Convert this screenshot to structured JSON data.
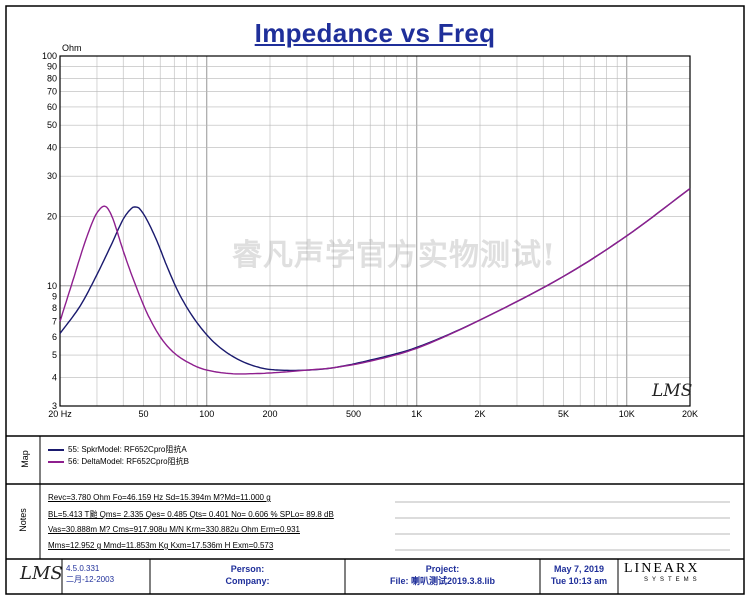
{
  "chart_data": {
    "type": "line",
    "title": "Impedance vs Freq",
    "ylabel": "Ohm",
    "xscale": "log",
    "yscale": "log",
    "xlim": [
      20,
      20000
    ],
    "ylim": [
      3,
      100
    ],
    "x_tick_labels": [
      {
        "value": 20,
        "label": "20 Hz"
      },
      {
        "value": 50,
        "label": "50"
      },
      {
        "value": 100,
        "label": "100"
      },
      {
        "value": 200,
        "label": "200"
      },
      {
        "value": 500,
        "label": "500"
      },
      {
        "value": 1000,
        "label": "1K"
      },
      {
        "value": 2000,
        "label": "2K"
      },
      {
        "value": 5000,
        "label": "5K"
      },
      {
        "value": 10000,
        "label": "10K"
      },
      {
        "value": 20000,
        "label": "20K"
      }
    ],
    "y_tick_labels": [
      {
        "value": 100,
        "label": "100"
      },
      {
        "value": 90,
        "label": "90"
      },
      {
        "value": 80,
        "label": "80"
      },
      {
        "value": 70,
        "label": "70"
      },
      {
        "value": 60,
        "label": "60"
      },
      {
        "value": 50,
        "label": "50"
      },
      {
        "value": 40,
        "label": "40"
      },
      {
        "value": 30,
        "label": "30"
      },
      {
        "value": 20,
        "label": "20"
      },
      {
        "value": 10,
        "label": "10"
      },
      {
        "value": 9,
        "label": "9"
      },
      {
        "value": 8,
        "label": "8"
      },
      {
        "value": 7,
        "label": "7"
      },
      {
        "value": 6,
        "label": "6"
      },
      {
        "value": 5,
        "label": "5"
      },
      {
        "value": 4,
        "label": "4"
      },
      {
        "value": 3,
        "label": "3"
      }
    ],
    "grid": true,
    "series": [
      {
        "name": "55: SpkrModel: RF652Cpro阻抗A",
        "color": "#1a1a6e",
        "x": [
          20,
          25,
          30,
          35,
          40,
          44,
          46.2,
          48,
          52,
          58,
          65,
          75,
          90,
          110,
          140,
          180,
          220,
          300,
          400,
          600,
          1000,
          2000,
          5000,
          10000,
          20000
        ],
        "y": [
          6.2,
          8.2,
          11.2,
          15.0,
          19.5,
          21.8,
          22.0,
          21.6,
          19.3,
          15.6,
          12.0,
          9.0,
          6.9,
          5.6,
          4.8,
          4.4,
          4.3,
          4.3,
          4.4,
          4.75,
          5.4,
          7.1,
          11.0,
          16.5,
          26.5
        ]
      },
      {
        "name": "56: DeltaModel: RF652Cpro阻抗B",
        "color": "#8e1f8e",
        "x": [
          20,
          23,
          26,
          29,
          31,
          32.6,
          34,
          36,
          40,
          45,
          52,
          60,
          70,
          85,
          100,
          130,
          170,
          220,
          300,
          400,
          600,
          1000,
          2000,
          5000,
          10000,
          20000
        ],
        "y": [
          7.0,
          10.5,
          15.0,
          19.6,
          21.6,
          22.2,
          21.5,
          19.2,
          14.2,
          10.5,
          7.6,
          6.0,
          5.1,
          4.55,
          4.3,
          4.15,
          4.15,
          4.2,
          4.3,
          4.4,
          4.7,
          5.35,
          7.1,
          11.0,
          16.5,
          26.5
        ]
      }
    ],
    "watermark": "睿凡声学官方实物测试!",
    "logo": "LMS"
  },
  "map": {
    "label": "Map",
    "rows": [
      "55: SpkrModel: RF652Cpro阻抗A",
      "56: DeltaModel: RF652Cpro阻抗B"
    ]
  },
  "notes": {
    "label": "Notes",
    "lines": [
      "Revc=3.780 Ohm  Fo=46.159 Hz  Sd=15.394m M?Md=11.000 g",
      "BL=5.413 T颱  Qms= 2.335  Qes= 0.485  Qts= 0.401  No= 0.606 %  SPLo= 89.8 dB",
      "Vas=30.888m M? Cms=917.908u M/N  Krm=330.882u Ohm  Erm=0.931",
      "Mms=12.952 g  Mmd=11.853m Kg  Kxm=17.536m H  Exm=0.573"
    ]
  },
  "footer": {
    "logo": "LMS",
    "version": "4.5.0.331",
    "date_local": "二月-12-2003",
    "person_label": "Person:",
    "company_label": "Company:",
    "project_label": "Project:",
    "file_label": "File: 喇叭测试2019.3.8.lib",
    "date": "May  7, 2019",
    "time": "Tue 10:13 am",
    "brand": "LINEARX",
    "brand_sub": "SYSTEMS"
  }
}
